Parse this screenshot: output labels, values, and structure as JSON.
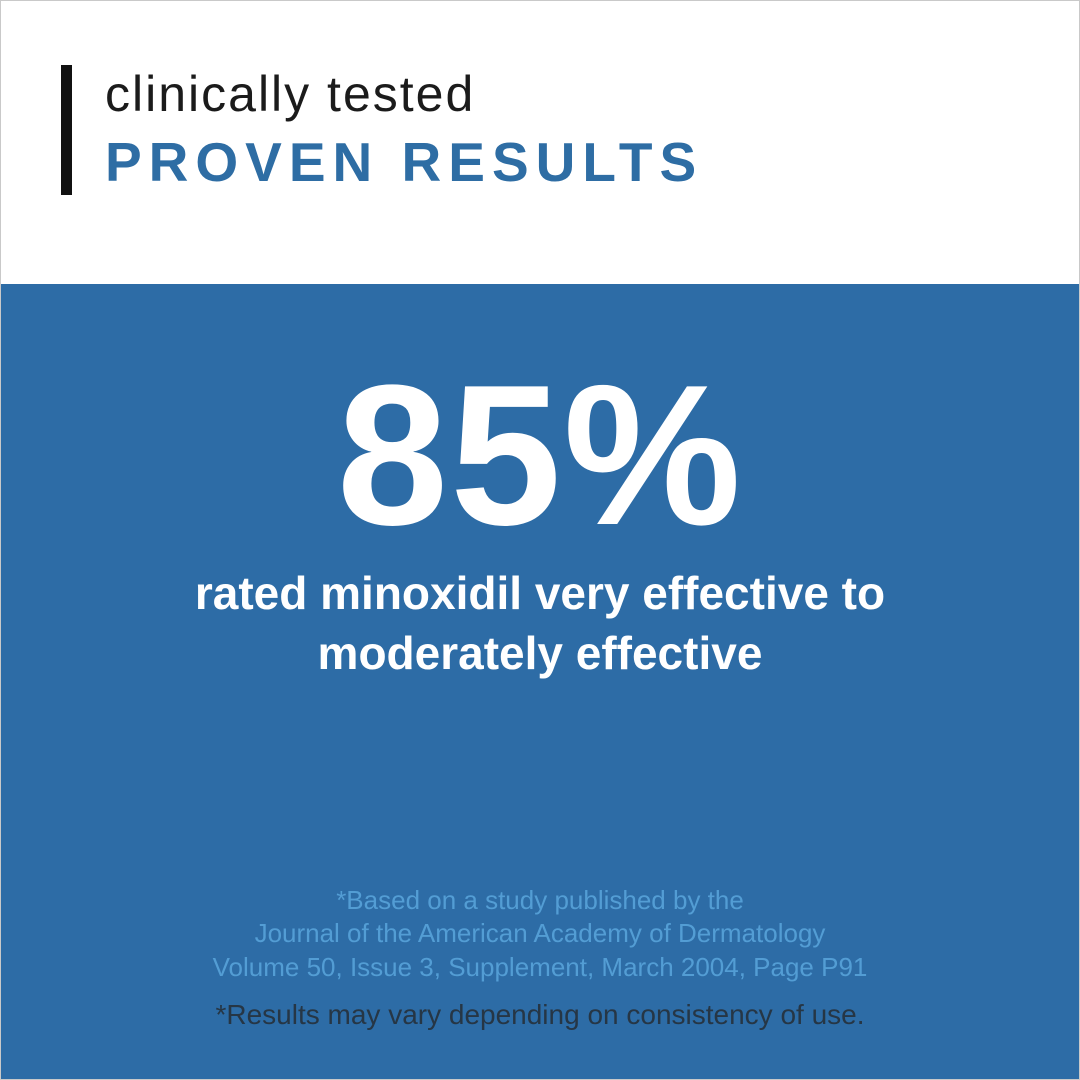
{
  "header": {
    "eyebrow": "clinically tested",
    "title": "PROVEN RESULTS"
  },
  "stat": {
    "value": "85%",
    "description_line1": "rated minoxidil very effective to",
    "description_line2": "moderately effective"
  },
  "footnotes": {
    "source_line1": "*Based on a study published by the",
    "source_line2": "Journal of the American Academy of Dermatology",
    "source_line3": "Volume 50, Issue 3, Supplement, March 2004, Page P91",
    "disclaimer": "*Results may vary depending on consistency of use."
  },
  "colors": {
    "panel_blue": "#2d6ca6",
    "title_blue": "#2e6da4",
    "footnote_blue": "#539dd4",
    "disclaimer_dark": "#263645",
    "accent_black": "#111111",
    "eyebrow_dark": "#1b1b1b"
  }
}
